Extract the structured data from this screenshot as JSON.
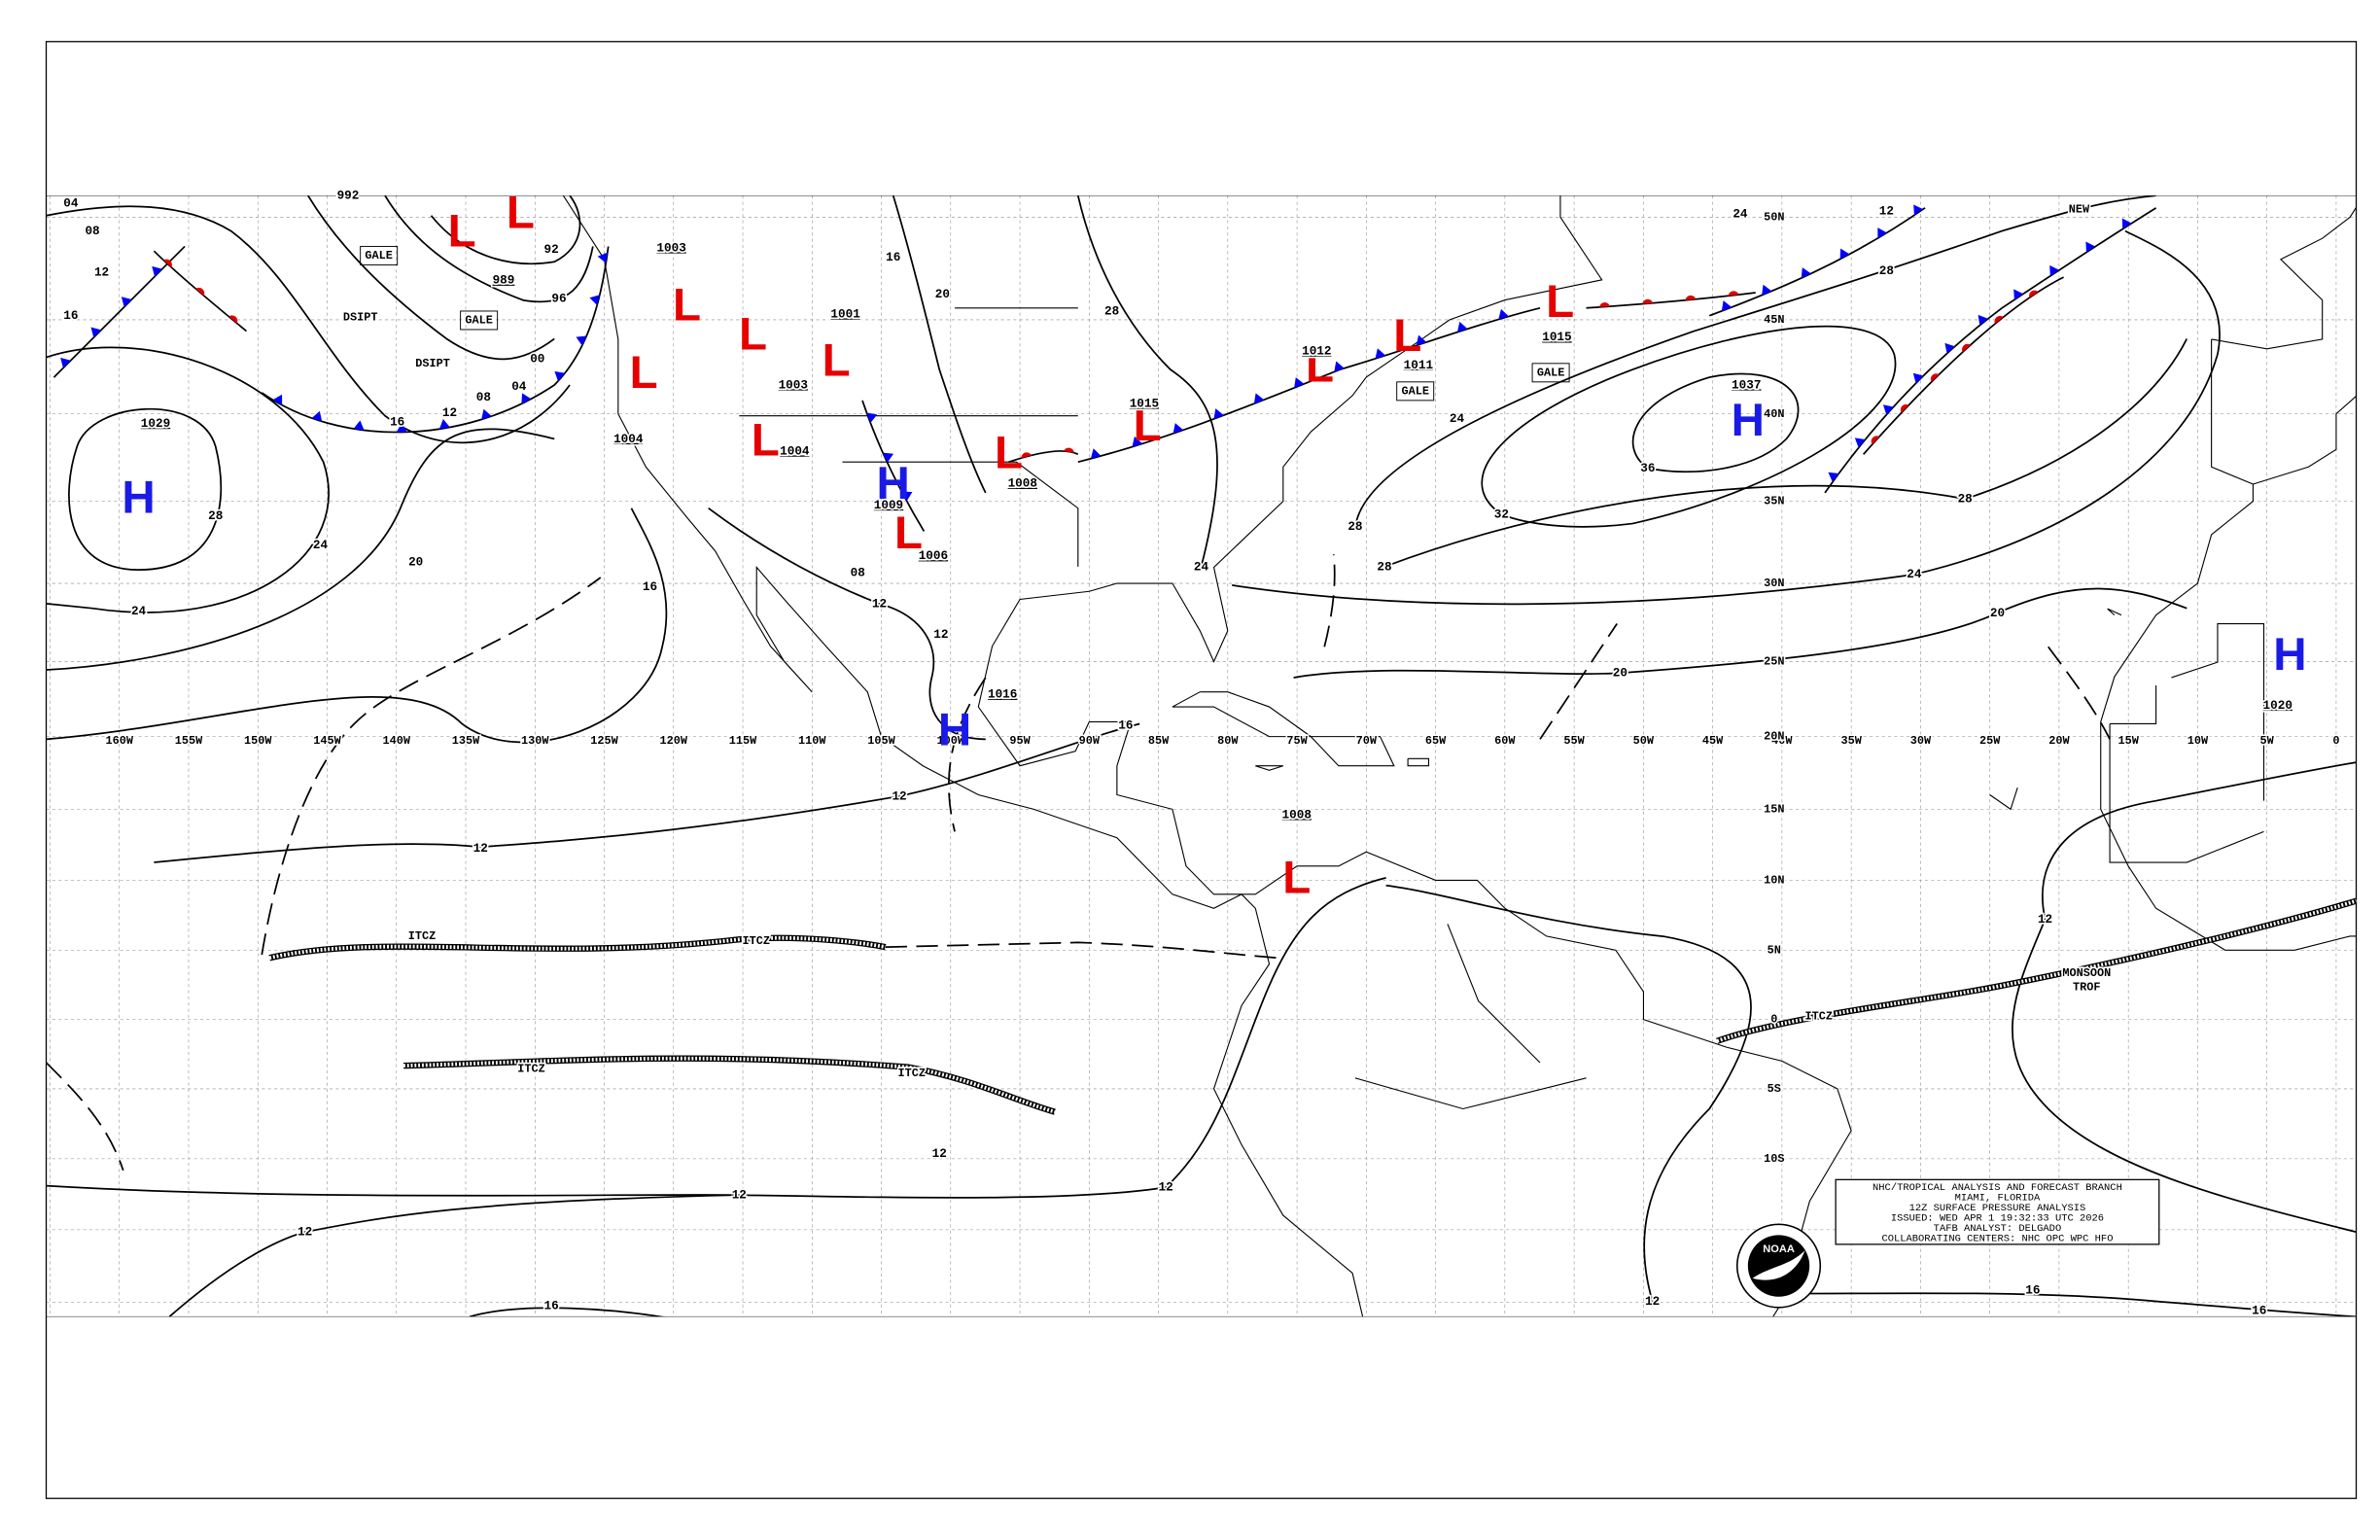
{
  "longitude_labels": [
    "160W",
    "155W",
    "150W",
    "145W",
    "140W",
    "135W",
    "130W",
    "125W",
    "120W",
    "115W",
    "110W",
    "105W",
    "100W",
    "95W",
    "90W",
    "85W",
    "80W",
    "75W",
    "70W",
    "65W",
    "60W",
    "55W",
    "50W",
    "45W",
    "40W",
    "35W",
    "30W",
    "25W",
    "20W",
    "15W",
    "10W",
    "5W",
    "0"
  ],
  "latitude_labels": [
    "50N",
    "45N",
    "40N",
    "35N",
    "30N",
    "25N",
    "20N",
    "15N",
    "10N",
    "5N",
    "0",
    "5S",
    "10S"
  ],
  "pressure_centers": [
    {
      "symbol": "H",
      "pressure": 1029
    },
    {
      "symbol": "L",
      "pressure": 989
    },
    {
      "symbol": "L"
    },
    {
      "symbol": "L",
      "pressure": 1003
    },
    {
      "symbol": "L",
      "pressure": 1003
    },
    {
      "symbol": "L",
      "pressure": 1004
    },
    {
      "symbol": "L",
      "pressure": 1004
    },
    {
      "symbol": "L",
      "pressure": 1001
    },
    {
      "symbol": "H",
      "pressure": 1009
    },
    {
      "symbol": "L",
      "pressure": 1006
    },
    {
      "symbol": "L",
      "pressure": 1008
    },
    {
      "symbol": "H",
      "pressure": 1016
    },
    {
      "symbol": "L",
      "pressure": 1015
    },
    {
      "symbol": "L",
      "pressure": 1012
    },
    {
      "symbol": "L",
      "pressure": 1011
    },
    {
      "symbol": "L",
      "pressure": 1015
    },
    {
      "symbol": "H",
      "pressure": 1037
    },
    {
      "symbol": "L",
      "pressure": 1008
    },
    {
      "symbol": "H",
      "pressure": 1020
    }
  ],
  "isobar_labels": [
    "04",
    "08",
    "12",
    "16",
    "992",
    "92",
    "96",
    "00",
    "04",
    "08",
    "12",
    "16",
    "28",
    "24",
    "20",
    "24",
    "16",
    "12",
    "12",
    "08",
    "16",
    "12",
    "12",
    "12",
    "12",
    "12",
    "12",
    "16",
    "12",
    "12",
    "16",
    "16",
    "20",
    "20",
    "24",
    "28",
    "32",
    "36",
    "28",
    "28",
    "24",
    "28",
    "12",
    "24",
    "20",
    "16",
    "28",
    "24"
  ],
  "annotations": [
    "GALE",
    "GALE",
    "GALE",
    "GALE",
    "DSIPT",
    "DSIPT",
    "ITCZ",
    "ITCZ",
    "ITCZ",
    "ITCZ",
    "ITCZ",
    "MONSOON",
    "TROF",
    "NEW"
  ],
  "info_box": {
    "lines": [
      "NHC/TROPICAL ANALYSIS AND FORECAST BRANCH",
      "MIAMI, FLORIDA",
      "12Z SURFACE PRESSURE ANALYSIS",
      "ISSUED: WED APR 1 19:32:33 UTC 2026",
      "TAFB ANALYST: DELGADO",
      "COLLABORATING CENTERS: NHC OPC WPC HFO"
    ],
    "logo_text": "NOAA"
  }
}
